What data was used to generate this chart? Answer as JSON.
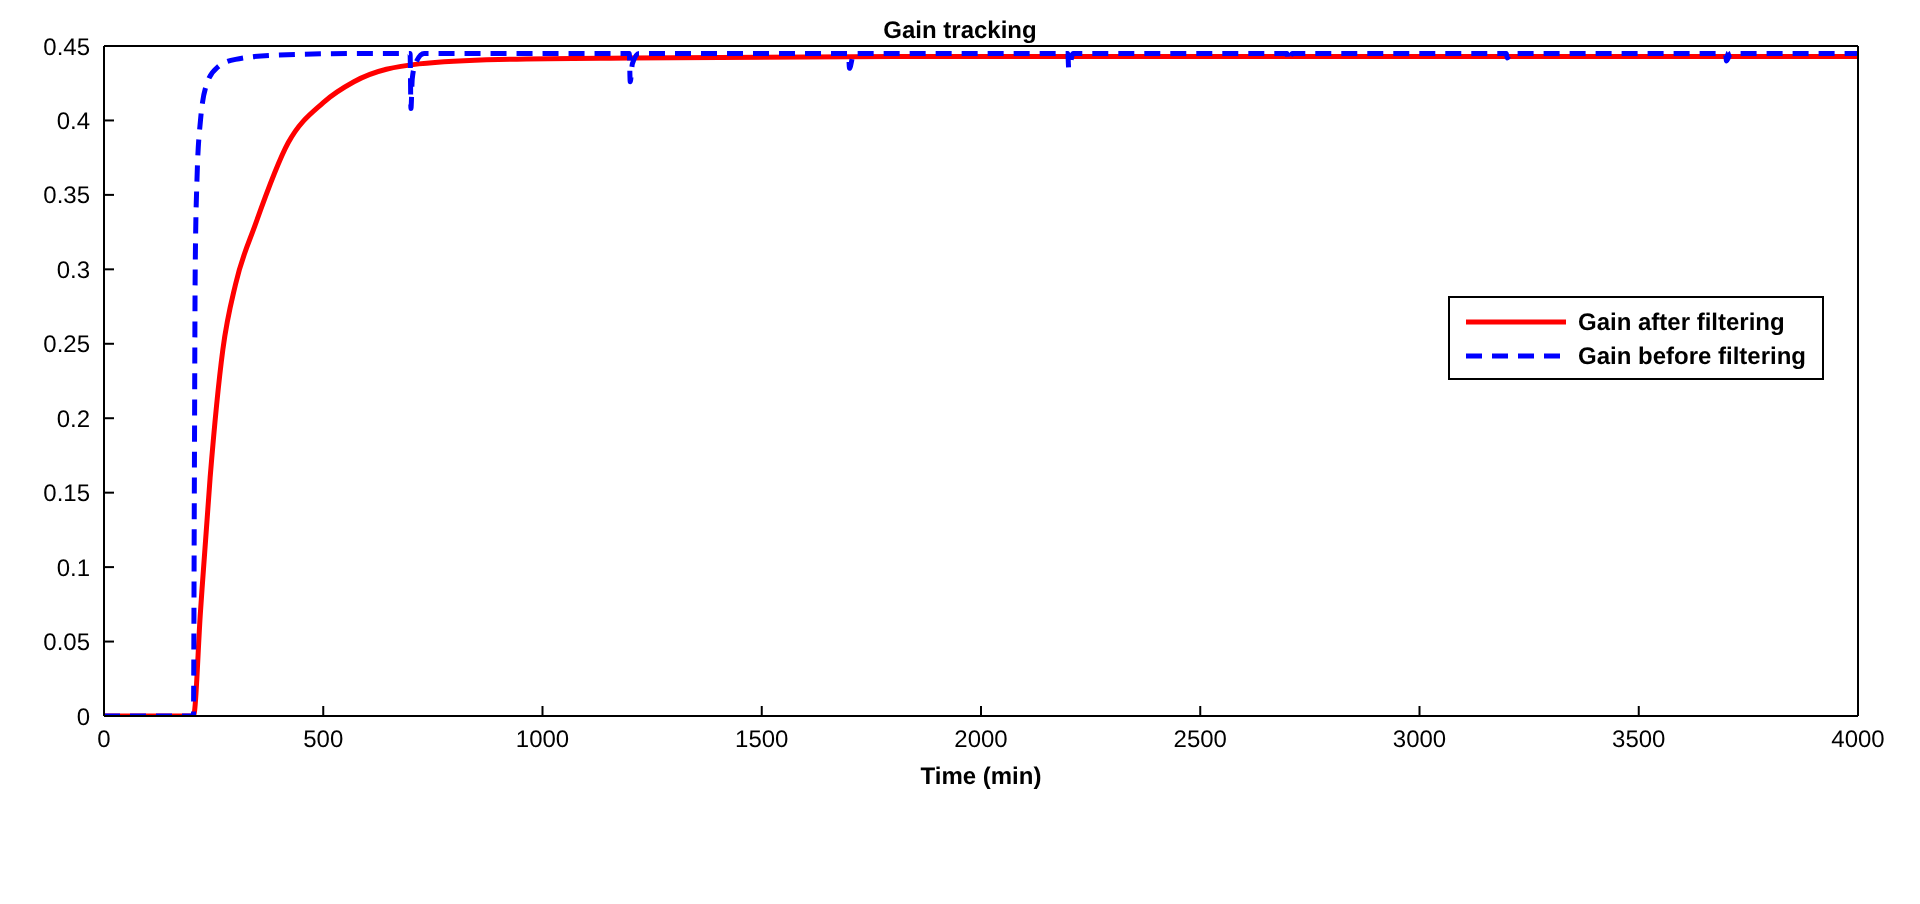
{
  "chart_data": {
    "type": "line",
    "title": "Gain tracking",
    "xlabel": "Time (min)",
    "xlim": [
      0,
      4000
    ],
    "xticks": [
      0,
      500,
      1000,
      1500,
      2000,
      2500,
      3000,
      3500,
      4000
    ],
    "ylim": [
      0,
      0.45
    ],
    "yticks": [
      0,
      0.05,
      0.1,
      0.15,
      0.2,
      0.25,
      0.3,
      0.35,
      0.4,
      0.45
    ],
    "grid": false,
    "legend": "right",
    "marker": "none",
    "series": [
      {
        "name": "Gain after filtering",
        "color": "#ff0000",
        "line_style": "solid",
        "x": [
          0,
          204,
          220,
          242,
          271,
          300,
          345,
          420,
          500,
          570,
          718,
          900,
          1200,
          2000,
          4000
        ],
        "values": [
          0,
          0,
          0.07,
          0.16,
          0.246,
          0.29,
          0.33,
          0.385,
          0.412,
          0.426,
          0.438,
          0.441,
          0.442,
          0.443,
          0.443
        ]
      },
      {
        "name": "Gain before filtering",
        "color": "#0000ff",
        "line_style": "dashed",
        "x": [
          0,
          204,
          206,
          208,
          212,
          220,
          235,
          260,
          300,
          400,
          600,
          698,
          700,
          703,
          710,
          730,
          1198,
          1200,
          1205,
          1220,
          1698,
          1700,
          1710,
          2198,
          2200,
          2210,
          2698,
          2700,
          2710,
          3198,
          3200,
          3210,
          3698,
          3700,
          3710,
          4000
        ],
        "values": [
          0,
          0,
          0.15,
          0.3,
          0.36,
          0.4,
          0.425,
          0.436,
          0.441,
          0.444,
          0.445,
          0.445,
          0.408,
          0.428,
          0.438,
          0.445,
          0.445,
          0.426,
          0.438,
          0.445,
          0.445,
          0.435,
          0.445,
          0.445,
          0.435,
          0.445,
          0.445,
          0.44,
          0.445,
          0.445,
          0.442,
          0.445,
          0.445,
          0.44,
          0.445,
          0.445
        ]
      }
    ]
  }
}
